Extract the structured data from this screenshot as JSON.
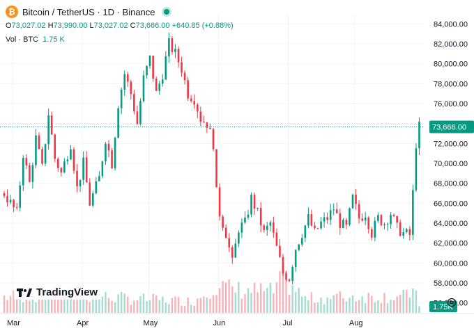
{
  "header": {
    "coin_icon": "bitcoin-icon",
    "title": "Bitcoin / TetherUS · 1D · Binance",
    "status_icon": "market-open-dot-icon"
  },
  "ohlc": {
    "o_label": "O",
    "o_value": "73,027.02",
    "h_label": "H",
    "h_value": "73,990.00",
    "l_label": "L",
    "l_value": "73,027.02",
    "c_label": "C",
    "c_value": "73,666.00",
    "change": "+640.85 (+0.88%)"
  },
  "volume": {
    "label": "Vol · BTC",
    "value": "1.75 K"
  },
  "branding": {
    "text": "TradingView",
    "logo_icon": "tradingview-logo-icon"
  },
  "settings_icon": "settings-gear-icon",
  "colors": {
    "up": "#089981",
    "down": "#f23645",
    "up_vol": "#a5dccf",
    "down_vol": "#f7b3b9",
    "grid": "#f0f3fa"
  },
  "chart_data": {
    "type": "candlestick",
    "symbol": "BTCUSDT",
    "interval": "1D",
    "y_tick_labels": [
      "56,000.00",
      "58,000.00",
      "60,000.00",
      "62,000.00",
      "64,000.00",
      "66,000.00",
      "68,000.00",
      "70,000.00",
      "72,000.00",
      "74,000.00",
      "76,000.00",
      "78,000.00",
      "80,000.00",
      "82,000.00",
      "84,000.00"
    ],
    "ylim": [
      55000,
      85000
    ],
    "x_tick_labels": [
      "Mar",
      "Apr",
      "May",
      "Jun",
      "Jul",
      "Aug"
    ],
    "last_price_label": "73,666.00",
    "last_price": 73666,
    "volume_badge": "1.75K",
    "price_path": [
      [
        0,
        67000
      ],
      [
        4,
        65000
      ],
      [
        6,
        71000
      ],
      [
        8,
        68000
      ],
      [
        10,
        72500
      ],
      [
        12,
        69500
      ],
      [
        14,
        75000
      ],
      [
        16,
        70500
      ],
      [
        18,
        69000
      ],
      [
        21,
        72000
      ],
      [
        23,
        67500
      ],
      [
        25,
        70000
      ],
      [
        27,
        66000
      ],
      [
        30,
        68500
      ],
      [
        32,
        72500
      ],
      [
        34,
        70000
      ],
      [
        36,
        76000
      ],
      [
        38,
        79000
      ],
      [
        40,
        77000
      ],
      [
        42,
        74000
      ],
      [
        44,
        78500
      ],
      [
        46,
        80500
      ],
      [
        48,
        77000
      ],
      [
        50,
        79000
      ],
      [
        52,
        82000
      ],
      [
        54,
        81000
      ],
      [
        56,
        79500
      ],
      [
        58,
        77000
      ],
      [
        60,
        76500
      ],
      [
        62,
        74500
      ],
      [
        64,
        74000
      ],
      [
        66,
        72000
      ],
      [
        67,
        67000
      ],
      [
        68,
        65000
      ],
      [
        70,
        63000
      ],
      [
        72,
        60000
      ],
      [
        74,
        63500
      ],
      [
        76,
        64000
      ],
      [
        78,
        66500
      ],
      [
        80,
        65000
      ],
      [
        82,
        63000
      ],
      [
        84,
        64000
      ],
      [
        86,
        61500
      ],
      [
        88,
        59000
      ],
      [
        90,
        58500
      ],
      [
        92,
        61500
      ],
      [
        94,
        63000
      ],
      [
        96,
        64500
      ],
      [
        98,
        63000
      ],
      [
        100,
        64000
      ],
      [
        102,
        64500
      ],
      [
        104,
        65500
      ],
      [
        106,
        64000
      ],
      [
        108,
        63500
      ],
      [
        110,
        66500
      ],
      [
        112,
        64500
      ],
      [
        114,
        65000
      ],
      [
        116,
        63000
      ],
      [
        118,
        64500
      ],
      [
        120,
        64000
      ],
      [
        122,
        65000
      ],
      [
        124,
        63500
      ],
      [
        126,
        63000
      ],
      [
        128,
        62800
      ],
      [
        129,
        67000
      ],
      [
        130,
        72000
      ],
      [
        131,
        73666
      ]
    ],
    "volume_path": [
      [
        0,
        0.35
      ],
      [
        20,
        0.4
      ],
      [
        40,
        0.3
      ],
      [
        60,
        0.25
      ],
      [
        66,
        0.6
      ],
      [
        72,
        0.5
      ],
      [
        85,
        0.45
      ],
      [
        88,
        0.75
      ],
      [
        95,
        0.3
      ],
      [
        110,
        0.35
      ],
      [
        128,
        0.35
      ],
      [
        129,
        0.7
      ],
      [
        131,
        0.1
      ]
    ]
  }
}
